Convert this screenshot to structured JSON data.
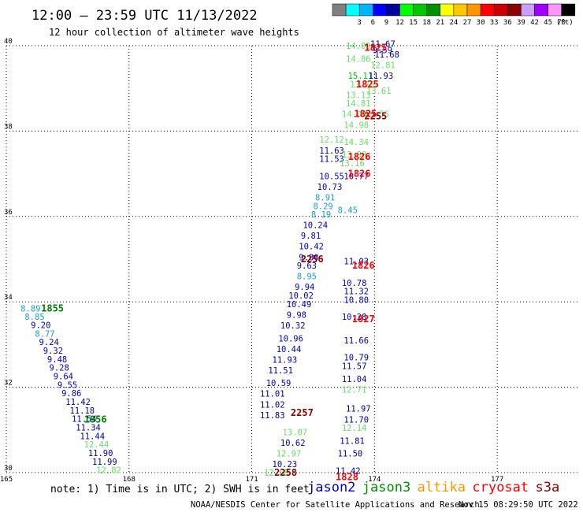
{
  "header": {
    "title": "12:00 – 23:59 UTC 11/13/2022",
    "subtitle": "12 hour collection of altimeter wave heights"
  },
  "colorbar": {
    "unit": "(ft)",
    "bins": [
      {
        "color": "#808080",
        "label": ""
      },
      {
        "color": "#00ffff",
        "label": "3"
      },
      {
        "color": "#00b4ff",
        "label": "6"
      },
      {
        "color": "#0000ff",
        "label": "9"
      },
      {
        "color": "#0000a0",
        "label": "12"
      },
      {
        "color": "#00ff00",
        "label": "15"
      },
      {
        "color": "#00c800",
        "label": "18"
      },
      {
        "color": "#009000",
        "label": "21"
      },
      {
        "color": "#ffff00",
        "label": "24"
      },
      {
        "color": "#ffc800",
        "label": "27"
      },
      {
        "color": "#ff9600",
        "label": "30"
      },
      {
        "color": "#ff0000",
        "label": "33"
      },
      {
        "color": "#c80000",
        "label": "36"
      },
      {
        "color": "#8c0000",
        "label": "39"
      },
      {
        "color": "#c8a0ff",
        "label": "42"
      },
      {
        "color": "#a000ff",
        "label": "45"
      },
      {
        "color": "#ff96ff",
        "label": "70"
      },
      {
        "color": "#000000",
        "label": ""
      }
    ]
  },
  "chart_data": {
    "type": "scatter",
    "xlim": [
      165,
      179
    ],
    "ylim": [
      30,
      40
    ],
    "x_ticks": [
      "165",
      "168",
      "171",
      "174",
      "177"
    ],
    "y_ticks": [
      "30",
      "32",
      "34",
      "36",
      "38",
      "40"
    ],
    "grid": true,
    "series": [
      {
        "label_color": "#1a9fcc",
        "points": [
          {
            "x": 165.35,
            "y": 33.85,
            "v": "8.89",
            "c": "#1a9fcc"
          },
          {
            "x": 165.45,
            "y": 33.65,
            "v": "8.85",
            "c": "#1a9fcc"
          },
          {
            "x": 165.6,
            "y": 33.46,
            "v": "9.20",
            "c": "#0000cc"
          },
          {
            "x": 165.7,
            "y": 33.26,
            "v": "8.77",
            "c": "#1a9fcc"
          },
          {
            "x": 165.8,
            "y": 33.06,
            "v": "9.24",
            "c": "#0000cc"
          },
          {
            "x": 165.9,
            "y": 32.86,
            "v": "9.32",
            "c": "#0000cc"
          },
          {
            "x": 166.0,
            "y": 32.66,
            "v": "9.48",
            "c": "#0000cc"
          },
          {
            "x": 166.05,
            "y": 32.46,
            "v": "9.28",
            "c": "#0000cc"
          },
          {
            "x": 166.15,
            "y": 32.26,
            "v": "9.64",
            "c": "#0000cc"
          },
          {
            "x": 166.25,
            "y": 32.06,
            "v": "9.55",
            "c": "#0000cc"
          },
          {
            "x": 166.35,
            "y": 31.86,
            "v": "9.86",
            "c": "#0000cc"
          },
          {
            "x": 166.45,
            "y": 31.66,
            "v": "11.42",
            "c": "#0000a0"
          },
          {
            "x": 166.55,
            "y": 31.46,
            "v": "11.18",
            "c": "#0000a0"
          },
          {
            "x": 166.6,
            "y": 31.26,
            "v": "11.54",
            "c": "#0000a0"
          },
          {
            "x": 166.7,
            "y": 31.06,
            "v": "11.34",
            "c": "#0000a0"
          },
          {
            "x": 166.8,
            "y": 30.86,
            "v": "11.44",
            "c": "#0000a0"
          },
          {
            "x": 166.9,
            "y": 30.66,
            "v": "12.44",
            "c": "#66dd66"
          },
          {
            "x": 167.0,
            "y": 30.46,
            "v": "11.90",
            "c": "#0000a0"
          },
          {
            "x": 167.1,
            "y": 30.26,
            "v": "11.99",
            "c": "#0000a0"
          },
          {
            "x": 167.2,
            "y": 30.06,
            "v": "12.82",
            "c": "#66dd66"
          }
        ]
      },
      {
        "label_color": "#0000a0",
        "points": [
          {
            "x": 171.3,
            "y": 30.0,
            "v": "12.68",
            "c": "#66dd66"
          },
          {
            "x": 171.5,
            "y": 30.2,
            "v": "10.23",
            "c": "#0000cc"
          },
          {
            "x": 171.6,
            "y": 30.45,
            "v": "12.97",
            "c": "#66dd66"
          },
          {
            "x": 171.7,
            "y": 30.7,
            "v": "10.62",
            "c": "#0000cc"
          },
          {
            "x": 171.75,
            "y": 30.95,
            "v": "13.07",
            "c": "#66dd66"
          },
          {
            "x": 171.2,
            "y": 31.35,
            "v": "11.83",
            "c": "#0000a0"
          },
          {
            "x": 171.2,
            "y": 31.6,
            "v": "11.02",
            "c": "#0000a0"
          },
          {
            "x": 171.2,
            "y": 31.85,
            "v": "11.01",
            "c": "#0000a0"
          },
          {
            "x": 171.35,
            "y": 32.1,
            "v": "10.59",
            "c": "#0000cc"
          },
          {
            "x": 171.4,
            "y": 32.4,
            "v": "11.51",
            "c": "#0000a0"
          },
          {
            "x": 171.5,
            "y": 32.65,
            "v": "11.93",
            "c": "#0000a0"
          },
          {
            "x": 171.6,
            "y": 32.9,
            "v": "10.44",
            "c": "#0000cc"
          },
          {
            "x": 171.65,
            "y": 33.15,
            "v": "10.96",
            "c": "#0000cc"
          },
          {
            "x": 171.7,
            "y": 33.45,
            "v": "10.32",
            "c": "#0000cc"
          },
          {
            "x": 171.85,
            "y": 33.7,
            "v": "9.98",
            "c": "#0000cc"
          },
          {
            "x": 171.85,
            "y": 33.95,
            "v": "10.49",
            "c": "#0000cc"
          },
          {
            "x": 171.9,
            "y": 34.15,
            "v": "10.02",
            "c": "#0000cc"
          },
          {
            "x": 172.05,
            "y": 34.35,
            "v": "9.94",
            "c": "#0000cc"
          },
          {
            "x": 172.1,
            "y": 34.6,
            "v": "8.95",
            "c": "#1a9fcc"
          },
          {
            "x": 172.1,
            "y": 34.85,
            "v": "9.63",
            "c": "#0000cc"
          },
          {
            "x": 172.15,
            "y": 35.05,
            "v": "9.80",
            "c": "#0000cc"
          },
          {
            "x": 172.15,
            "y": 35.3,
            "v": "10.42",
            "c": "#0000cc"
          },
          {
            "x": 172.2,
            "y": 35.55,
            "v": "9.81",
            "c": "#0000cc"
          },
          {
            "x": 172.25,
            "y": 35.8,
            "v": "10.24",
            "c": "#0000cc"
          },
          {
            "x": 172.45,
            "y": 36.05,
            "v": "8.19",
            "c": "#1a9fcc"
          },
          {
            "x": 172.5,
            "y": 36.25,
            "v": "8.29",
            "c": "#1a9fcc"
          },
          {
            "x": 172.55,
            "y": 36.45,
            "v": "8.91",
            "c": "#1a9fcc"
          },
          {
            "x": 172.6,
            "y": 36.7,
            "v": "10.73",
            "c": "#0000cc"
          },
          {
            "x": 172.65,
            "y": 36.95,
            "v": "10.55",
            "c": "#0000cc"
          },
          {
            "x": 172.65,
            "y": 37.35,
            "v": "11.53",
            "c": "#0000a0"
          },
          {
            "x": 172.65,
            "y": 37.55,
            "v": "11.63",
            "c": "#0000a0"
          },
          {
            "x": 172.65,
            "y": 37.8,
            "v": "12.12",
            "c": "#66dd66"
          }
        ]
      },
      {
        "label_color": "#0000a0",
        "points": [
          {
            "x": 173.05,
            "y": 30.05,
            "v": "11.42",
            "c": "#0000a0"
          },
          {
            "x": 173.1,
            "y": 30.45,
            "v": "11.50",
            "c": "#0000a0"
          },
          {
            "x": 173.15,
            "y": 30.75,
            "v": "11.81",
            "c": "#0000a0"
          },
          {
            "x": 173.2,
            "y": 31.05,
            "v": "12.14",
            "c": "#66dd66"
          },
          {
            "x": 173.25,
            "y": 31.25,
            "v": "11.70",
            "c": "#0000a0"
          },
          {
            "x": 173.3,
            "y": 31.5,
            "v": "11.97",
            "c": "#0000a0"
          },
          {
            "x": 173.2,
            "y": 31.95,
            "v": "12.71",
            "c": "#66dd66"
          },
          {
            "x": 173.2,
            "y": 32.2,
            "v": "11.04",
            "c": "#0000a0"
          },
          {
            "x": 173.2,
            "y": 32.5,
            "v": "11.57",
            "c": "#0000a0"
          },
          {
            "x": 173.25,
            "y": 32.7,
            "v": "10.79",
            "c": "#0000cc"
          },
          {
            "x": 173.25,
            "y": 33.1,
            "v": "11.66",
            "c": "#0000a0"
          },
          {
            "x": 173.2,
            "y": 33.65,
            "v": "10.28",
            "c": "#0000cc"
          },
          {
            "x": 173.25,
            "y": 34.05,
            "v": "10.80",
            "c": "#0000cc"
          },
          {
            "x": 173.25,
            "y": 34.25,
            "v": "11.32",
            "c": "#0000a0"
          },
          {
            "x": 173.2,
            "y": 34.45,
            "v": "10.78",
            "c": "#0000cc"
          },
          {
            "x": 173.25,
            "y": 34.95,
            "v": "11.03",
            "c": "#0000a0"
          },
          {
            "x": 173.1,
            "y": 36.15,
            "v": "8.45",
            "c": "#1a9fcc"
          },
          {
            "x": 173.25,
            "y": 36.95,
            "v": "10.77",
            "c": "#0000cc"
          },
          {
            "x": 173.15,
            "y": 37.25,
            "v": "13.16",
            "c": "#66dd66"
          },
          {
            "x": 173.2,
            "y": 37.45,
            "v": "13.98",
            "c": "#66dd66"
          },
          {
            "x": 173.25,
            "y": 37.75,
            "v": "14.34",
            "c": "#66dd66"
          },
          {
            "x": 173.25,
            "y": 38.15,
            "v": "14.98",
            "c": "#66dd66"
          },
          {
            "x": 173.2,
            "y": 38.4,
            "v": "14.04",
            "c": "#66dd66"
          },
          {
            "x": 173.3,
            "y": 38.65,
            "v": "14.81",
            "c": "#66dd66"
          },
          {
            "x": 173.3,
            "y": 38.85,
            "v": "13.13",
            "c": "#66dd66"
          },
          {
            "x": 173.4,
            "y": 39.1,
            "v": "13.76",
            "c": "#66dd66"
          },
          {
            "x": 173.35,
            "y": 39.3,
            "v": "15.11",
            "c": "#00c800"
          },
          {
            "x": 173.3,
            "y": 39.7,
            "v": "14.86",
            "c": "#66dd66"
          },
          {
            "x": 173.3,
            "y": 40.0,
            "v": "14.09",
            "c": "#66dd66"
          }
        ]
      },
      {
        "label_color": "#0000a0",
        "points": [
          {
            "x": 173.75,
            "y": 38.4,
            "v": "13.55",
            "c": "#66dd66"
          },
          {
            "x": 173.8,
            "y": 38.95,
            "v": "13.61",
            "c": "#66dd66"
          },
          {
            "x": 173.85,
            "y": 39.3,
            "v": "11.93",
            "c": "#0000a0"
          },
          {
            "x": 173.9,
            "y": 39.55,
            "v": "12.81",
            "c": "#66dd66"
          },
          {
            "x": 174.0,
            "y": 39.8,
            "v": "11.68",
            "c": "#0000a0"
          },
          {
            "x": 173.9,
            "y": 40.05,
            "v": "11.67",
            "c": "#0000a0"
          },
          {
            "x": 173.95,
            "y": 39.9,
            "v": "9.59",
            "c": "#0000cc"
          }
        ]
      }
    ],
    "time_labels": [
      {
        "x": 165.85,
        "y": 33.85,
        "v": "1855",
        "c": "#008000"
      },
      {
        "x": 166.9,
        "y": 31.25,
        "v": "1856",
        "c": "#008000"
      },
      {
        "x": 171.95,
        "y": 31.4,
        "v": "2257",
        "c": "#8b0000"
      },
      {
        "x": 171.55,
        "y": 30.0,
        "v": "2258",
        "c": "#8b0000"
      },
      {
        "x": 172.2,
        "y": 35.0,
        "v": "2256",
        "c": "#8b0000"
      },
      {
        "x": 173.75,
        "y": 38.35,
        "v": "2255",
        "c": "#8b0000"
      },
      {
        "x": 173.05,
        "y": 29.9,
        "v": "1828",
        "c": "#ff0000"
      },
      {
        "x": 173.45,
        "y": 33.6,
        "v": "1827",
        "c": "#ff0000"
      },
      {
        "x": 173.45,
        "y": 34.85,
        "v": "1826",
        "c": "#ff0000"
      },
      {
        "x": 173.35,
        "y": 37.0,
        "v": "1826",
        "c": "#ff0000"
      },
      {
        "x": 173.35,
        "y": 37.4,
        "v": "1826",
        "c": "#ff0000"
      },
      {
        "x": 173.5,
        "y": 38.4,
        "v": "1825",
        "c": "#ff0000"
      },
      {
        "x": 173.55,
        "y": 39.1,
        "v": "1825",
        "c": "#ff0000"
      },
      {
        "x": 173.75,
        "y": 39.95,
        "v": "1825",
        "c": "#ff0000"
      }
    ]
  },
  "footer": {
    "note": "note:  1) Time is in UTC;  2) SWH is in feet",
    "satellites": [
      {
        "name": "jason2",
        "color": "#0000cc"
      },
      {
        "name": "jason3",
        "color": "#009000"
      },
      {
        "name": "altika",
        "color": "#ff9600"
      },
      {
        "name": "cryosat",
        "color": "#ff0000"
      },
      {
        "name": "s3a",
        "color": "#8b0000"
      }
    ],
    "credit": "NOAA/NESDIS Center for Satellite Applications and Research",
    "timestamp": "Nov 15 08:29:50 UTC 2022"
  }
}
